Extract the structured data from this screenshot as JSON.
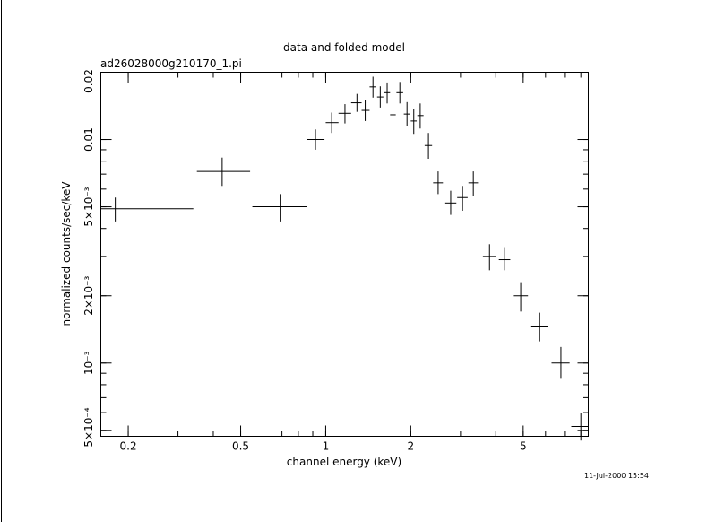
{
  "chart_data": {
    "type": "scatter",
    "title": "data and folded model",
    "subtitle": "ad26028000g210170_1.pi",
    "xlabel": "channel energy (keV)",
    "ylabel": "normalized counts/sec/keV",
    "xscale": "log",
    "yscale": "log",
    "xlim": [
      0.16,
      8.5
    ],
    "ylim": [
      0.00047,
      0.02
    ],
    "x_ticks": [
      {
        "value": 0.2,
        "label": "0.2"
      },
      {
        "value": 0.5,
        "label": "0.5"
      },
      {
        "value": 1,
        "label": "1"
      },
      {
        "value": 2,
        "label": "2"
      },
      {
        "value": 5,
        "label": "5"
      }
    ],
    "y_ticks": [
      {
        "value": 0.0005,
        "label": "5×10⁻⁴"
      },
      {
        "value": 0.001,
        "label": "10⁻³"
      },
      {
        "value": 0.002,
        "label": "2×10⁻³"
      },
      {
        "value": 0.005,
        "label": "5×10⁻³"
      },
      {
        "value": 0.01,
        "label": "0.01"
      },
      {
        "value": 0.02,
        "label": "0.02"
      }
    ],
    "series": [
      {
        "points": [
          {
            "x": 0.18,
            "xlo": 0.16,
            "xhi": 0.34,
            "y": 0.0049,
            "ylo": 0.0043,
            "yhi": 0.0055
          },
          {
            "x": 0.43,
            "xlo": 0.35,
            "xhi": 0.54,
            "y": 0.0072,
            "ylo": 0.0062,
            "yhi": 0.0083
          },
          {
            "x": 0.69,
            "xlo": 0.55,
            "xhi": 0.86,
            "y": 0.005,
            "ylo": 0.0043,
            "yhi": 0.0057
          },
          {
            "x": 0.92,
            "xlo": 0.86,
            "xhi": 0.99,
            "y": 0.01,
            "ylo": 0.009,
            "yhi": 0.0111
          },
          {
            "x": 1.05,
            "xlo": 1.0,
            "xhi": 1.11,
            "y": 0.0119,
            "ylo": 0.0107,
            "yhi": 0.0132
          },
          {
            "x": 1.17,
            "xlo": 1.11,
            "xhi": 1.23,
            "y": 0.0131,
            "ylo": 0.0118,
            "yhi": 0.0144
          },
          {
            "x": 1.29,
            "xlo": 1.23,
            "xhi": 1.34,
            "y": 0.0146,
            "ylo": 0.0133,
            "yhi": 0.016
          },
          {
            "x": 1.38,
            "xlo": 1.34,
            "xhi": 1.43,
            "y": 0.0135,
            "ylo": 0.0121,
            "yhi": 0.015
          },
          {
            "x": 1.47,
            "xlo": 1.43,
            "xhi": 1.51,
            "y": 0.0172,
            "ylo": 0.0154,
            "yhi": 0.0191
          },
          {
            "x": 1.56,
            "xlo": 1.52,
            "xhi": 1.6,
            "y": 0.0155,
            "ylo": 0.0139,
            "yhi": 0.0173
          },
          {
            "x": 1.65,
            "xlo": 1.61,
            "xhi": 1.69,
            "y": 0.0162,
            "ylo": 0.0145,
            "yhi": 0.018
          },
          {
            "x": 1.73,
            "xlo": 1.69,
            "xhi": 1.77,
            "y": 0.0129,
            "ylo": 0.0114,
            "yhi": 0.0146
          },
          {
            "x": 1.83,
            "xlo": 1.78,
            "xhi": 1.88,
            "y": 0.0162,
            "ylo": 0.0145,
            "yhi": 0.0181
          },
          {
            "x": 1.94,
            "xlo": 1.89,
            "xhi": 1.99,
            "y": 0.013,
            "ylo": 0.0115,
            "yhi": 0.0147
          },
          {
            "x": 2.05,
            "xlo": 2.0,
            "xhi": 2.1,
            "y": 0.0121,
            "ylo": 0.0106,
            "yhi": 0.0137
          },
          {
            "x": 2.16,
            "xlo": 2.11,
            "xhi": 2.22,
            "y": 0.0128,
            "ylo": 0.0112,
            "yhi": 0.0145
          },
          {
            "x": 2.31,
            "xlo": 2.24,
            "xhi": 2.38,
            "y": 0.0094,
            "ylo": 0.0082,
            "yhi": 0.0107
          },
          {
            "x": 2.5,
            "xlo": 2.4,
            "xhi": 2.6,
            "y": 0.0064,
            "ylo": 0.0057,
            "yhi": 0.0072
          },
          {
            "x": 2.77,
            "xlo": 2.63,
            "xhi": 2.9,
            "y": 0.0052,
            "ylo": 0.0046,
            "yhi": 0.0059
          },
          {
            "x": 3.05,
            "xlo": 2.92,
            "xhi": 3.18,
            "y": 0.0055,
            "ylo": 0.0048,
            "yhi": 0.0062
          },
          {
            "x": 3.33,
            "xlo": 3.2,
            "xhi": 3.46,
            "y": 0.0064,
            "ylo": 0.0056,
            "yhi": 0.0072
          },
          {
            "x": 3.8,
            "xlo": 3.6,
            "xhi": 4.0,
            "y": 0.003,
            "ylo": 0.0026,
            "yhi": 0.0034
          },
          {
            "x": 4.3,
            "xlo": 4.1,
            "xhi": 4.5,
            "y": 0.0029,
            "ylo": 0.0026,
            "yhi": 0.0033
          },
          {
            "x": 4.9,
            "xlo": 4.6,
            "xhi": 5.2,
            "y": 0.002,
            "ylo": 0.0017,
            "yhi": 0.0023
          },
          {
            "x": 5.7,
            "xlo": 5.3,
            "xhi": 6.1,
            "y": 0.00145,
            "ylo": 0.00125,
            "yhi": 0.00168
          },
          {
            "x": 6.8,
            "xlo": 6.3,
            "xhi": 7.3,
            "y": 0.001,
            "ylo": 0.00085,
            "yhi": 0.00118
          },
          {
            "x": 8.0,
            "xlo": 7.4,
            "xhi": 8.5,
            "y": 0.00052,
            "ylo": 0.00045,
            "yhi": 0.0006
          }
        ]
      }
    ]
  },
  "footer": {
    "timestamp": "11-Jul-2000 15:54"
  }
}
